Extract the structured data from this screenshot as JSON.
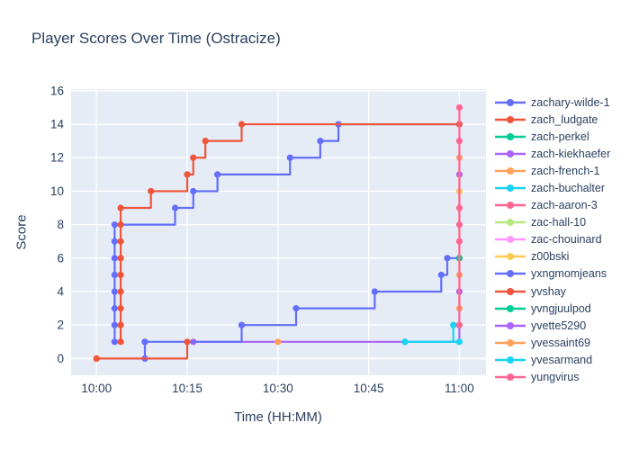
{
  "title": "Player Scores Over Time (Ostracize)",
  "plot": {
    "bg": "#e5ecf6",
    "grid": "#ffffff",
    "text_color": "#2a3f5f"
  },
  "axes": {
    "x": {
      "label": "Time (HH:MM)",
      "tick_labels": [
        "10:00",
        "10:15",
        "10:30",
        "10:45",
        "11:00"
      ]
    },
    "y": {
      "label": "Score",
      "tick_labels": [
        "0",
        "2",
        "4",
        "6",
        "8",
        "10",
        "12",
        "14",
        "16"
      ]
    }
  },
  "chart_data": {
    "type": "line",
    "step_shape": "hv",
    "title": "Player Scores Over Time (Ostracize)",
    "xlabel": "Time (HH:MM)",
    "ylabel": "Score",
    "x_unit": "minutes after 10:00",
    "x_start_time": "10:00",
    "x_tick_minutes": [
      0,
      15,
      30,
      45,
      60
    ],
    "x_range_minutes": [
      -4.2,
      64.4
    ],
    "y_ticks": [
      0,
      2,
      4,
      6,
      8,
      10,
      12,
      14,
      16
    ],
    "y_range": [
      -1.0,
      16.1
    ],
    "grid": true,
    "legend_position": "right",
    "series": [
      {
        "name": "zachary-wilde-1",
        "color": "#636EFA",
        "mode": "lines+markers",
        "final_score": 14,
        "points": [
          [
            3,
            1
          ],
          [
            3,
            2
          ],
          [
            3,
            3
          ],
          [
            3,
            4
          ],
          [
            3,
            5
          ],
          [
            3,
            6
          ],
          [
            3,
            7
          ],
          [
            3,
            8
          ],
          [
            13,
            9
          ],
          [
            16,
            10
          ],
          [
            20,
            11
          ],
          [
            32,
            12
          ],
          [
            37,
            13
          ],
          [
            40,
            14
          ],
          [
            60,
            14
          ]
        ]
      },
      {
        "name": "zach_ludgate",
        "color": "#EF553B",
        "mode": "lines+markers",
        "final_score": 14,
        "points": [
          [
            4,
            1
          ],
          [
            4,
            2
          ],
          [
            4,
            3
          ],
          [
            4,
            4
          ],
          [
            4,
            5
          ],
          [
            4,
            6
          ],
          [
            4,
            7
          ],
          [
            4,
            8
          ],
          [
            4,
            9
          ],
          [
            9,
            10
          ],
          [
            15,
            11
          ],
          [
            16,
            12
          ],
          [
            18,
            13
          ],
          [
            24,
            14
          ],
          [
            60,
            14
          ]
        ]
      },
      {
        "name": "zach-perkel",
        "color": "#00CC96",
        "mode": "markers",
        "final_score": 1,
        "points": [
          [
            8,
            1
          ]
        ]
      },
      {
        "name": "zach-kiekhaefer",
        "color": "#AB63FA",
        "mode": "lines+markers",
        "final_score": 4,
        "points": [
          [
            16,
            1
          ],
          [
            60,
            4
          ]
        ]
      },
      {
        "name": "zach-french-1",
        "color": "#FFA15A",
        "mode": "markers",
        "final_score": 1,
        "points": [
          [
            30,
            1
          ]
        ]
      },
      {
        "name": "zach-buchalter",
        "color": "#19D3F3",
        "mode": "lines+markers",
        "final_score": 1,
        "points": [
          [
            51,
            1
          ],
          [
            60,
            1
          ]
        ]
      },
      {
        "name": "zach-aaron-3",
        "color": "#FF6692",
        "mode": "markers",
        "final_score": 2,
        "points": [
          [
            60,
            2
          ]
        ]
      },
      {
        "name": "zac-hall-10",
        "color": "#B6E880",
        "mode": "markers",
        "final_score": 0,
        "points": [
          [
            0,
            0
          ]
        ]
      },
      {
        "name": "zac-chouinard",
        "color": "#FF97FF",
        "mode": "markers",
        "final_score": 0,
        "points": [
          [
            0,
            0
          ]
        ]
      },
      {
        "name": "z00bski",
        "color": "#FECB52",
        "mode": "markers",
        "final_score": 10,
        "points": [
          [
            0,
            0
          ],
          [
            60,
            10
          ]
        ]
      },
      {
        "name": "yxngmomjeans",
        "color": "#636EFA",
        "mode": "lines+markers",
        "final_score": 6,
        "points": [
          [
            8,
            0
          ],
          [
            8,
            1
          ],
          [
            24,
            2
          ],
          [
            33,
            3
          ],
          [
            46,
            4
          ],
          [
            57,
            5
          ],
          [
            58,
            6
          ],
          [
            60,
            6
          ]
        ]
      },
      {
        "name": "yvshay",
        "color": "#EF553B",
        "mode": "lines+markers",
        "final_score": 1,
        "points": [
          [
            0,
            0
          ],
          [
            15,
            1
          ]
        ]
      },
      {
        "name": "yvngjuulpod",
        "color": "#00CC96",
        "mode": "markers",
        "final_score": 6,
        "points": [
          [
            60,
            6
          ]
        ]
      },
      {
        "name": "yvette5290",
        "color": "#AB63FA",
        "mode": "markers",
        "final_score": 11,
        "points": [
          [
            60,
            11
          ]
        ]
      },
      {
        "name": "yvessaint69",
        "color": "#FFA15A",
        "mode": "lines+markers",
        "final_score": 12,
        "points": [
          [
            60,
            3
          ],
          [
            60,
            5
          ],
          [
            60,
            12
          ]
        ]
      },
      {
        "name": "yvesarmand",
        "color": "#19D3F3",
        "mode": "lines+markers",
        "final_score": 2,
        "points": [
          [
            51,
            1
          ],
          [
            59,
            2
          ],
          [
            60,
            2
          ]
        ]
      },
      {
        "name": "yungvirus",
        "color": "#FF6692",
        "mode": "lines+markers",
        "final_score": 15,
        "points": [
          [
            60,
            2
          ],
          [
            60,
            7
          ],
          [
            60,
            8
          ],
          [
            60,
            9
          ],
          [
            60,
            13
          ],
          [
            60,
            15
          ]
        ]
      }
    ]
  }
}
